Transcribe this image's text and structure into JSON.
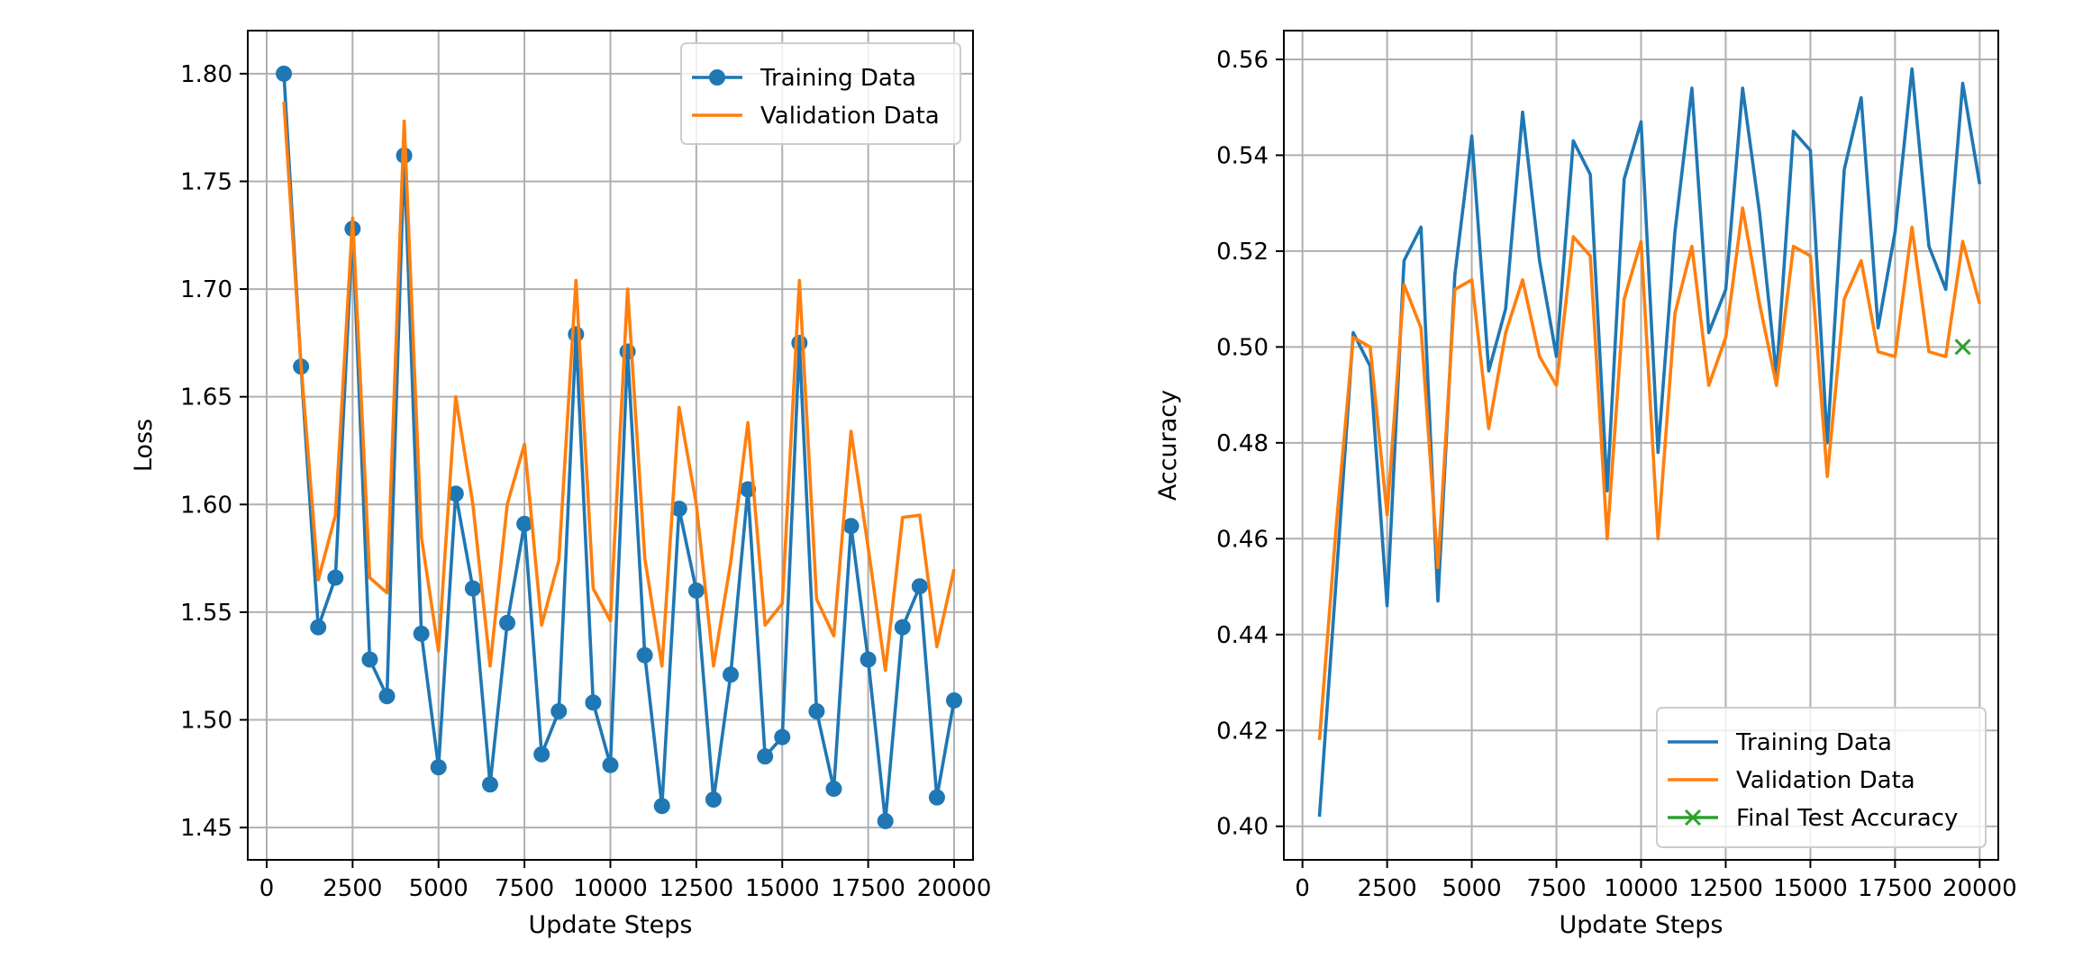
{
  "colors": {
    "training": "#1f77b4",
    "validation": "#ff7f0e",
    "test": "#2ca02c",
    "grid": "#b0b0b0"
  },
  "chart_data": [
    {
      "type": "line",
      "title": "",
      "xlabel": "Update Steps",
      "ylabel": "Loss",
      "xlim": [
        -550,
        20550
      ],
      "ylim": [
        1.435,
        1.82
      ],
      "xticks": [
        0,
        2500,
        5000,
        7500,
        10000,
        12500,
        15000,
        17500,
        20000
      ],
      "xtick_labels": [
        "0",
        "2500",
        "5000",
        "7500",
        "10000",
        "12500",
        "15000",
        "17500",
        "20000"
      ],
      "yticks": [
        1.45,
        1.5,
        1.55,
        1.6,
        1.65,
        1.7,
        1.75,
        1.8
      ],
      "ytick_labels": [
        "1.45",
        "1.50",
        "1.55",
        "1.60",
        "1.65",
        "1.70",
        "1.75",
        "1.80"
      ],
      "grid": true,
      "legend": "upper-right",
      "x": [
        500,
        1000,
        1500,
        2000,
        2500,
        3000,
        3500,
        4000,
        4500,
        5000,
        5500,
        6000,
        6500,
        7000,
        7500,
        8000,
        8500,
        9000,
        9500,
        10000,
        10500,
        11000,
        11500,
        12000,
        12500,
        13000,
        13500,
        14000,
        14500,
        15000,
        15500,
        16000,
        16500,
        17000,
        17500,
        18000,
        18500,
        19000,
        19500,
        20000
      ],
      "series": [
        {
          "name": "Training Data",
          "marker": "o",
          "color": "#1f77b4",
          "values": [
            1.8,
            1.664,
            1.543,
            1.566,
            1.728,
            1.528,
            1.511,
            1.762,
            1.54,
            1.478,
            1.605,
            1.561,
            1.47,
            1.545,
            1.591,
            1.484,
            1.504,
            1.679,
            1.508,
            1.479,
            1.671,
            1.53,
            1.46,
            1.598,
            1.56,
            1.463,
            1.521,
            1.607,
            1.483,
            1.492,
            1.675,
            1.504,
            1.468,
            1.59,
            1.528,
            1.453,
            1.543,
            1.562,
            1.464,
            1.509
          ]
        },
        {
          "name": "Validation Data",
          "marker": "",
          "color": "#ff7f0e",
          "values": [
            1.787,
            1.665,
            1.565,
            1.595,
            1.733,
            1.566,
            1.559,
            1.778,
            1.585,
            1.532,
            1.65,
            1.6,
            1.525,
            1.6,
            1.628,
            1.544,
            1.574,
            1.704,
            1.561,
            1.546,
            1.7,
            1.575,
            1.525,
            1.645,
            1.6,
            1.525,
            1.573,
            1.638,
            1.544,
            1.554,
            1.704,
            1.556,
            1.539,
            1.634,
            1.58,
            1.523,
            1.594,
            1.595,
            1.534,
            1.57
          ]
        }
      ]
    },
    {
      "type": "line",
      "title": "",
      "xlabel": "Update Steps",
      "ylabel": "Accuracy",
      "xlim": [
        -550,
        20550
      ],
      "ylim": [
        0.393,
        0.566
      ],
      "xticks": [
        0,
        2500,
        5000,
        7500,
        10000,
        12500,
        15000,
        17500,
        20000
      ],
      "xtick_labels": [
        "0",
        "2500",
        "5000",
        "7500",
        "10000",
        "12500",
        "15000",
        "17500",
        "20000"
      ],
      "yticks": [
        0.4,
        0.42,
        0.44,
        0.46,
        0.48,
        0.5,
        0.52,
        0.54,
        0.56
      ],
      "ytick_labels": [
        "0.40",
        "0.42",
        "0.44",
        "0.46",
        "0.48",
        "0.50",
        "0.52",
        "0.54",
        "0.56"
      ],
      "grid": true,
      "legend": "lower-right",
      "x": [
        500,
        1000,
        1500,
        2000,
        2500,
        3000,
        3500,
        4000,
        4500,
        5000,
        5500,
        6000,
        6500,
        7000,
        7500,
        8000,
        8500,
        9000,
        9500,
        10000,
        10500,
        11000,
        11500,
        12000,
        12500,
        13000,
        13500,
        14000,
        14500,
        15000,
        15500,
        16000,
        16500,
        17000,
        17500,
        18000,
        18500,
        19000,
        19500,
        20000
      ],
      "series": [
        {
          "name": "Training Data",
          "marker": "",
          "color": "#1f77b4",
          "values": [
            0.402,
            0.452,
            0.503,
            0.496,
            0.446,
            0.518,
            0.525,
            0.447,
            0.515,
            0.544,
            0.495,
            0.508,
            0.549,
            0.518,
            0.498,
            0.543,
            0.536,
            0.47,
            0.535,
            0.547,
            0.478,
            0.524,
            0.554,
            0.503,
            0.512,
            0.554,
            0.528,
            0.494,
            0.545,
            0.541,
            0.48,
            0.537,
            0.552,
            0.504,
            0.524,
            0.558,
            0.521,
            0.512,
            0.555,
            0.534
          ]
        },
        {
          "name": "Validation Data",
          "marker": "",
          "color": "#ff7f0e",
          "values": [
            0.418,
            0.463,
            0.502,
            0.5,
            0.465,
            0.513,
            0.504,
            0.454,
            0.512,
            0.514,
            0.483,
            0.503,
            0.514,
            0.498,
            0.492,
            0.523,
            0.519,
            0.46,
            0.51,
            0.522,
            0.46,
            0.507,
            0.521,
            0.492,
            0.502,
            0.529,
            0.509,
            0.492,
            0.521,
            0.519,
            0.473,
            0.51,
            0.518,
            0.499,
            0.498,
            0.525,
            0.499,
            0.498,
            0.522,
            0.509
          ]
        },
        {
          "name": "Final Test Accuracy",
          "marker": "x",
          "color": "#2ca02c",
          "line": false,
          "x": [
            19500
          ],
          "values": [
            0.5
          ]
        }
      ]
    }
  ]
}
